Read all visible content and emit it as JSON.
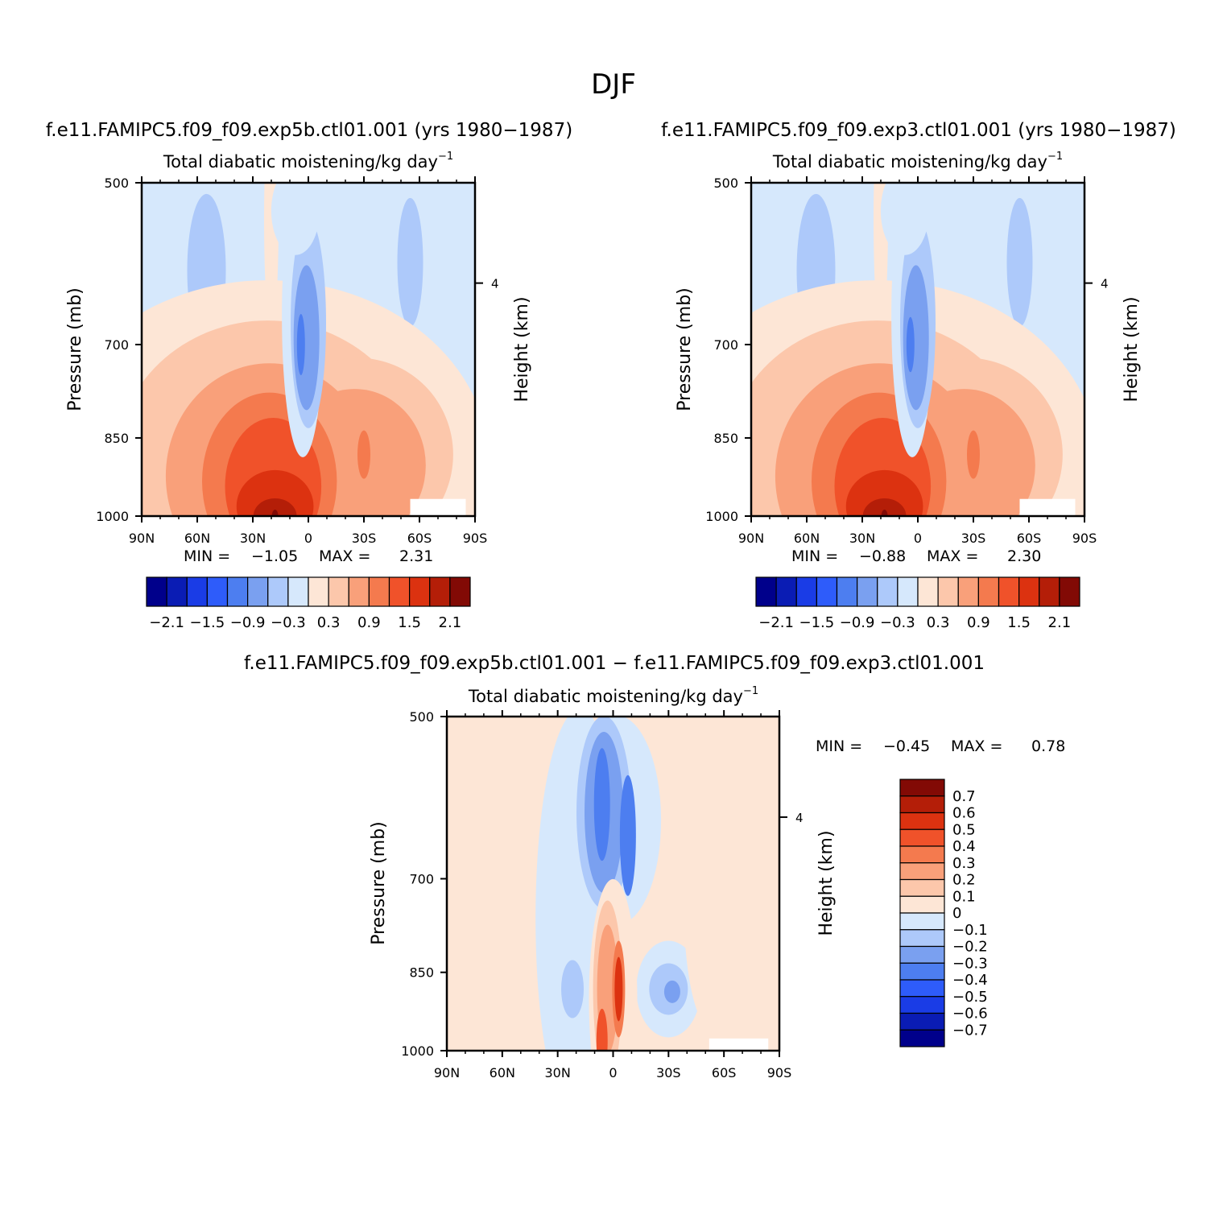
{
  "page_title": "DJF",
  "chart_data": [
    {
      "type": "contour",
      "title": "f.e11.FAMIPC5.f09_f09.exp5b.ctl01.001 (yrs 1980−1987)",
      "subtitle": "Total diabatic moistening/kg day",
      "subtitle_sup": "−1",
      "ylabel": "Pressure (mb)",
      "ylabel_right": "Height (km)",
      "x_tick_labels": [
        "90N",
        "60N",
        "30N",
        "0",
        "30S",
        "60S",
        "90S"
      ],
      "x_ticks": [
        90,
        60,
        30,
        0,
        -30,
        -60,
        -90
      ],
      "xlim": [
        90,
        -90
      ],
      "y_tick_labels": [
        "500",
        "700",
        "850",
        "1000"
      ],
      "y_ticks": [
        500,
        700,
        850,
        1000
      ],
      "ylim": [
        1000,
        500
      ],
      "right_tick_labels": [
        "4"
      ],
      "min_label": "MIN =",
      "min_value": "−1.05",
      "max_label": "MAX =",
      "max_value": "2.31",
      "colorbar_labels": [
        "−2.1",
        "−1.5",
        "−0.9",
        "−0.3",
        "0.3",
        "0.9",
        "1.5",
        "2.1"
      ]
    },
    {
      "type": "contour",
      "title": "f.e11.FAMIPC5.f09_f09.exp3.ctl01.001 (yrs 1980−1987)",
      "subtitle": "Total diabatic moistening/kg day",
      "subtitle_sup": "−1",
      "ylabel": "Pressure (mb)",
      "ylabel_right": "Height (km)",
      "x_tick_labels": [
        "90N",
        "60N",
        "30N",
        "0",
        "30S",
        "60S",
        "90S"
      ],
      "x_ticks": [
        90,
        60,
        30,
        0,
        -30,
        -60,
        -90
      ],
      "xlim": [
        90,
        -90
      ],
      "y_tick_labels": [
        "500",
        "700",
        "850",
        "1000"
      ],
      "y_ticks": [
        500,
        700,
        850,
        1000
      ],
      "ylim": [
        1000,
        500
      ],
      "right_tick_labels": [
        "4"
      ],
      "min_label": "MIN =",
      "min_value": "−0.88",
      "max_label": "MAX =",
      "max_value": "2.30",
      "colorbar_labels": [
        "−2.1",
        "−1.5",
        "−0.9",
        "−0.3",
        "0.3",
        "0.9",
        "1.5",
        "2.1"
      ]
    },
    {
      "type": "contour",
      "title": "f.e11.FAMIPC5.f09_f09.exp5b.ctl01.001 − f.e11.FAMIPC5.f09_f09.exp3.ctl01.001",
      "subtitle": "Total diabatic moistening/kg day",
      "subtitle_sup": "−1",
      "ylabel": "Pressure (mb)",
      "ylabel_right": "Height (km)",
      "x_tick_labels": [
        "90N",
        "60N",
        "30N",
        "0",
        "30S",
        "60S",
        "90S"
      ],
      "x_ticks": [
        90,
        60,
        30,
        0,
        -30,
        -60,
        -90
      ],
      "xlim": [
        90,
        -90
      ],
      "y_tick_labels": [
        "500",
        "700",
        "850",
        "1000"
      ],
      "y_ticks": [
        500,
        700,
        850,
        1000
      ],
      "ylim": [
        1000,
        500
      ],
      "right_tick_labels": [
        "4"
      ],
      "min_label": "MIN =",
      "min_value": "−0.45",
      "max_label": "MAX =",
      "max_value": "0.78",
      "colorbar_labels": [
        "0.7",
        "0.6",
        "0.5",
        "0.4",
        "0.3",
        "0.2",
        "0.1",
        "0",
        "−0.1",
        "−0.2",
        "−0.3",
        "−0.4",
        "−0.5",
        "−0.6",
        "−0.7"
      ]
    }
  ],
  "colors": {
    "palette": [
      "#00008b",
      "#0a1cb4",
      "#1a3ce6",
      "#2e5cfa",
      "#4d7ef0",
      "#7aa0f0",
      "#adc9fa",
      "#d6e8fc",
      "#fde6d6",
      "#fcc7ab",
      "#f9a07a",
      "#f47a4e",
      "#f0522a",
      "#dc3210",
      "#b41e08",
      "#820a05"
    ]
  }
}
